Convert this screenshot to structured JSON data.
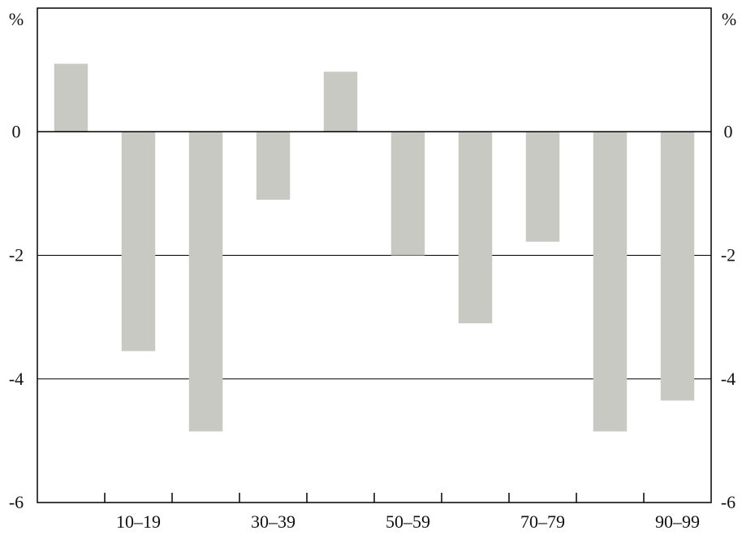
{
  "chart_data": {
    "type": "bar",
    "title": "",
    "xlabel": "",
    "ylabel": "",
    "left_unit": "%",
    "right_unit": "%",
    "ylim": [
      -6,
      2
    ],
    "yticks": [
      0,
      -2,
      -4,
      -6
    ],
    "ytick_labels": [
      "0",
      "-2",
      "-4",
      "-6"
    ],
    "gridlines": [
      -2,
      -4
    ],
    "categories": [
      "",
      "10–19",
      "",
      "30–39",
      "",
      "50–59",
      "",
      "70–79",
      "",
      "90–99"
    ],
    "values": [
      1.1,
      -3.55,
      -4.85,
      -1.1,
      0.97,
      -2.0,
      -3.1,
      -1.78,
      -4.85,
      -4.35
    ],
    "bar_color": "#c9c9c3",
    "grid": true
  }
}
